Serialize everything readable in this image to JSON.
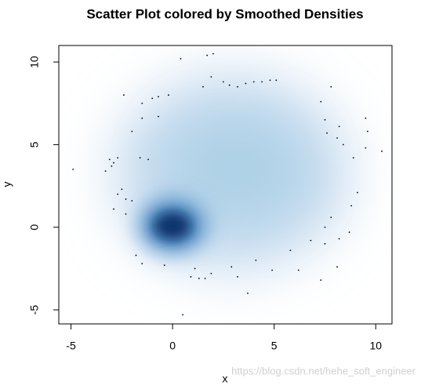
{
  "chart_data": {
    "type": "scatter",
    "title": "Scatter Plot colored by Smoothed Densities",
    "x_label": "x",
    "y_label": "y",
    "xlim": [
      -5.6,
      10.8
    ],
    "ylim": [
      -5.85,
      11
    ],
    "xticks": [
      -5,
      0,
      5,
      10
    ],
    "yticks": [
      -5,
      0,
      5,
      10
    ],
    "color": "#000000",
    "x": [
      -4.9,
      -3.3,
      -3.1,
      -2.9,
      -2.7,
      -3.0,
      -2.5,
      -2.7,
      -2.3,
      -2.9,
      -2.3,
      -2.0,
      -1.8,
      -1.5,
      -0.4,
      0.4,
      0.5,
      1.1,
      0.9,
      1.3,
      1.6,
      1.9,
      1.5,
      1.9,
      2.0,
      2.5,
      2.8,
      3.2,
      3.6,
      4.0,
      4.4,
      4.8,
      5.1,
      3.2,
      2.9,
      3.7,
      4.1,
      4.9,
      5.8,
      6.2,
      6.8,
      7.3,
      7.5,
      7.5,
      7.8,
      8.1,
      8.2,
      8.7,
      9.1,
      8.8,
      8.9,
      9.5,
      9.6,
      9.5,
      10.3,
      8.4,
      8.1,
      7.6,
      7.3,
      7.8,
      7.5,
      8.2,
      -2.4,
      -1.5,
      -1.0,
      -0.7,
      -0.2,
      -1.5,
      -0.7,
      -2.0,
      -1.6,
      -1.2,
      1.7
    ],
    "y": [
      3.5,
      3.4,
      4.1,
      3.9,
      4.2,
      3.7,
      2.3,
      2.0,
      1.7,
      1.1,
      0.8,
      1.6,
      -1.7,
      -2.2,
      -2.3,
      10.2,
      -5.3,
      -2.5,
      -3.0,
      -3.1,
      -3.1,
      -2.8,
      8.5,
      9.1,
      10.5,
      8.8,
      8.6,
      8.5,
      8.7,
      8.8,
      8.8,
      8.9,
      8.9,
      -3.0,
      -2.4,
      -4.0,
      -2.0,
      -2.6,
      -1.4,
      -2.6,
      -0.8,
      -3.2,
      -1.0,
      0.0,
      0.6,
      -2.4,
      -0.7,
      -0.3,
      2.1,
      1.3,
      4.2,
      4.8,
      5.8,
      6.6,
      4.6,
      5.0,
      5.4,
      5.7,
      7.6,
      8.5,
      6.5,
      6.1,
      8.0,
      7.5,
      7.8,
      7.9,
      8.0,
      6.6,
      6.7,
      5.8,
      4.2,
      4.1,
      10.4
    ]
  },
  "watermark": "https://blog.csdn.net/hehe_soft_engineer"
}
